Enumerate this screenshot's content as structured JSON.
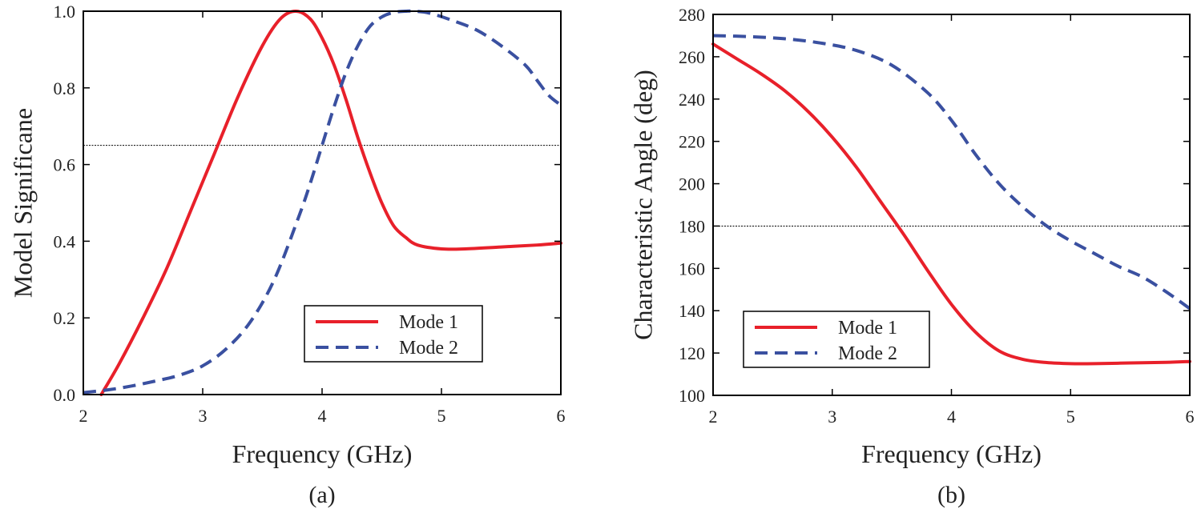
{
  "chart_data": [
    {
      "type": "line",
      "panel_label": "(a)",
      "xlabel": "Frequency (GHz)",
      "ylabel": "Model Significane",
      "xlim": [
        2,
        6
      ],
      "ylim": [
        0,
        1.0
      ],
      "xticks": [
        2,
        3,
        4,
        5,
        6
      ],
      "xtick_labels": [
        "2",
        "3",
        "4",
        "5",
        "6"
      ],
      "yticks": [
        0,
        0.2,
        0.4,
        0.6,
        0.8,
        1.0
      ],
      "ytick_labels": [
        "0.0",
        "0.2",
        "0.4",
        "0.6",
        "0.8",
        "1.0"
      ],
      "reference_line": 0.65,
      "legend_position": "lower-right",
      "series": [
        {
          "name": "Mode 1",
          "style": "solid",
          "color": "#e8202a",
          "x": [
            2.15,
            2.3,
            2.5,
            2.7,
            2.9,
            3.1,
            3.3,
            3.5,
            3.65,
            3.78,
            3.9,
            4.0,
            4.1,
            4.2,
            4.3,
            4.4,
            4.5,
            4.6,
            4.7,
            4.8,
            5.0,
            5.2,
            5.5,
            5.8,
            6.0
          ],
          "y": [
            0.0,
            0.08,
            0.2,
            0.33,
            0.48,
            0.63,
            0.78,
            0.91,
            0.98,
            1.0,
            0.98,
            0.93,
            0.86,
            0.77,
            0.67,
            0.58,
            0.5,
            0.44,
            0.41,
            0.39,
            0.38,
            0.38,
            0.385,
            0.39,
            0.395
          ]
        },
        {
          "name": "Mode 2",
          "style": "dashed",
          "color": "#3a50a0",
          "x": [
            2.0,
            2.2,
            2.4,
            2.6,
            2.8,
            3.0,
            3.2,
            3.4,
            3.6,
            3.8,
            3.9,
            4.0,
            4.1,
            4.2,
            4.3,
            4.4,
            4.5,
            4.6,
            4.7,
            4.78,
            4.9,
            5.1,
            5.3,
            5.5,
            5.7,
            5.8,
            5.9,
            6.0
          ],
          "y": [
            0.005,
            0.012,
            0.022,
            0.035,
            0.05,
            0.075,
            0.12,
            0.19,
            0.3,
            0.46,
            0.55,
            0.65,
            0.75,
            0.84,
            0.91,
            0.96,
            0.985,
            0.997,
            1.0,
            1.0,
            0.995,
            0.975,
            0.95,
            0.91,
            0.86,
            0.82,
            0.78,
            0.755
          ]
        }
      ]
    },
    {
      "type": "line",
      "panel_label": "(b)",
      "xlabel": "Frequency (GHz)",
      "ylabel": "Characteristic Angle (deg)",
      "xlim": [
        2,
        6
      ],
      "ylim": [
        100,
        280
      ],
      "xticks": [
        2,
        3,
        4,
        5,
        6
      ],
      "xtick_labels": [
        "2",
        "3",
        "4",
        "5",
        "6"
      ],
      "yticks": [
        100,
        120,
        140,
        160,
        180,
        200,
        220,
        240,
        260,
        280
      ],
      "ytick_labels": [
        "100",
        "120",
        "140",
        "160",
        "180",
        "200",
        "220",
        "240",
        "260",
        "280"
      ],
      "reference_line": 180,
      "legend_position": "lower-left",
      "series": [
        {
          "name": "Mode 1",
          "style": "solid",
          "color": "#e8202a",
          "x": [
            2.0,
            2.2,
            2.4,
            2.6,
            2.8,
            3.0,
            3.2,
            3.4,
            3.6,
            3.8,
            4.0,
            4.2,
            4.4,
            4.6,
            4.8,
            5.0,
            5.2,
            5.5,
            5.8,
            6.0
          ],
          "y": [
            266,
            259,
            252,
            244,
            234,
            222,
            208,
            192,
            176,
            159,
            143,
            130,
            121,
            117,
            115.5,
            115,
            115,
            115.3,
            115.6,
            116
          ]
        },
        {
          "name": "Mode 2",
          "style": "dashed",
          "color": "#3a50a0",
          "x": [
            2.0,
            2.3,
            2.6,
            2.9,
            3.2,
            3.5,
            3.8,
            4.0,
            4.2,
            4.4,
            4.6,
            4.8,
            5.0,
            5.2,
            5.4,
            5.6,
            5.8,
            6.0
          ],
          "y": [
            270,
            269.5,
            268.5,
            266.5,
            263,
            256,
            243,
            230,
            214,
            200,
            189,
            180,
            173,
            167,
            161,
            156,
            149,
            141
          ]
        }
      ]
    }
  ]
}
